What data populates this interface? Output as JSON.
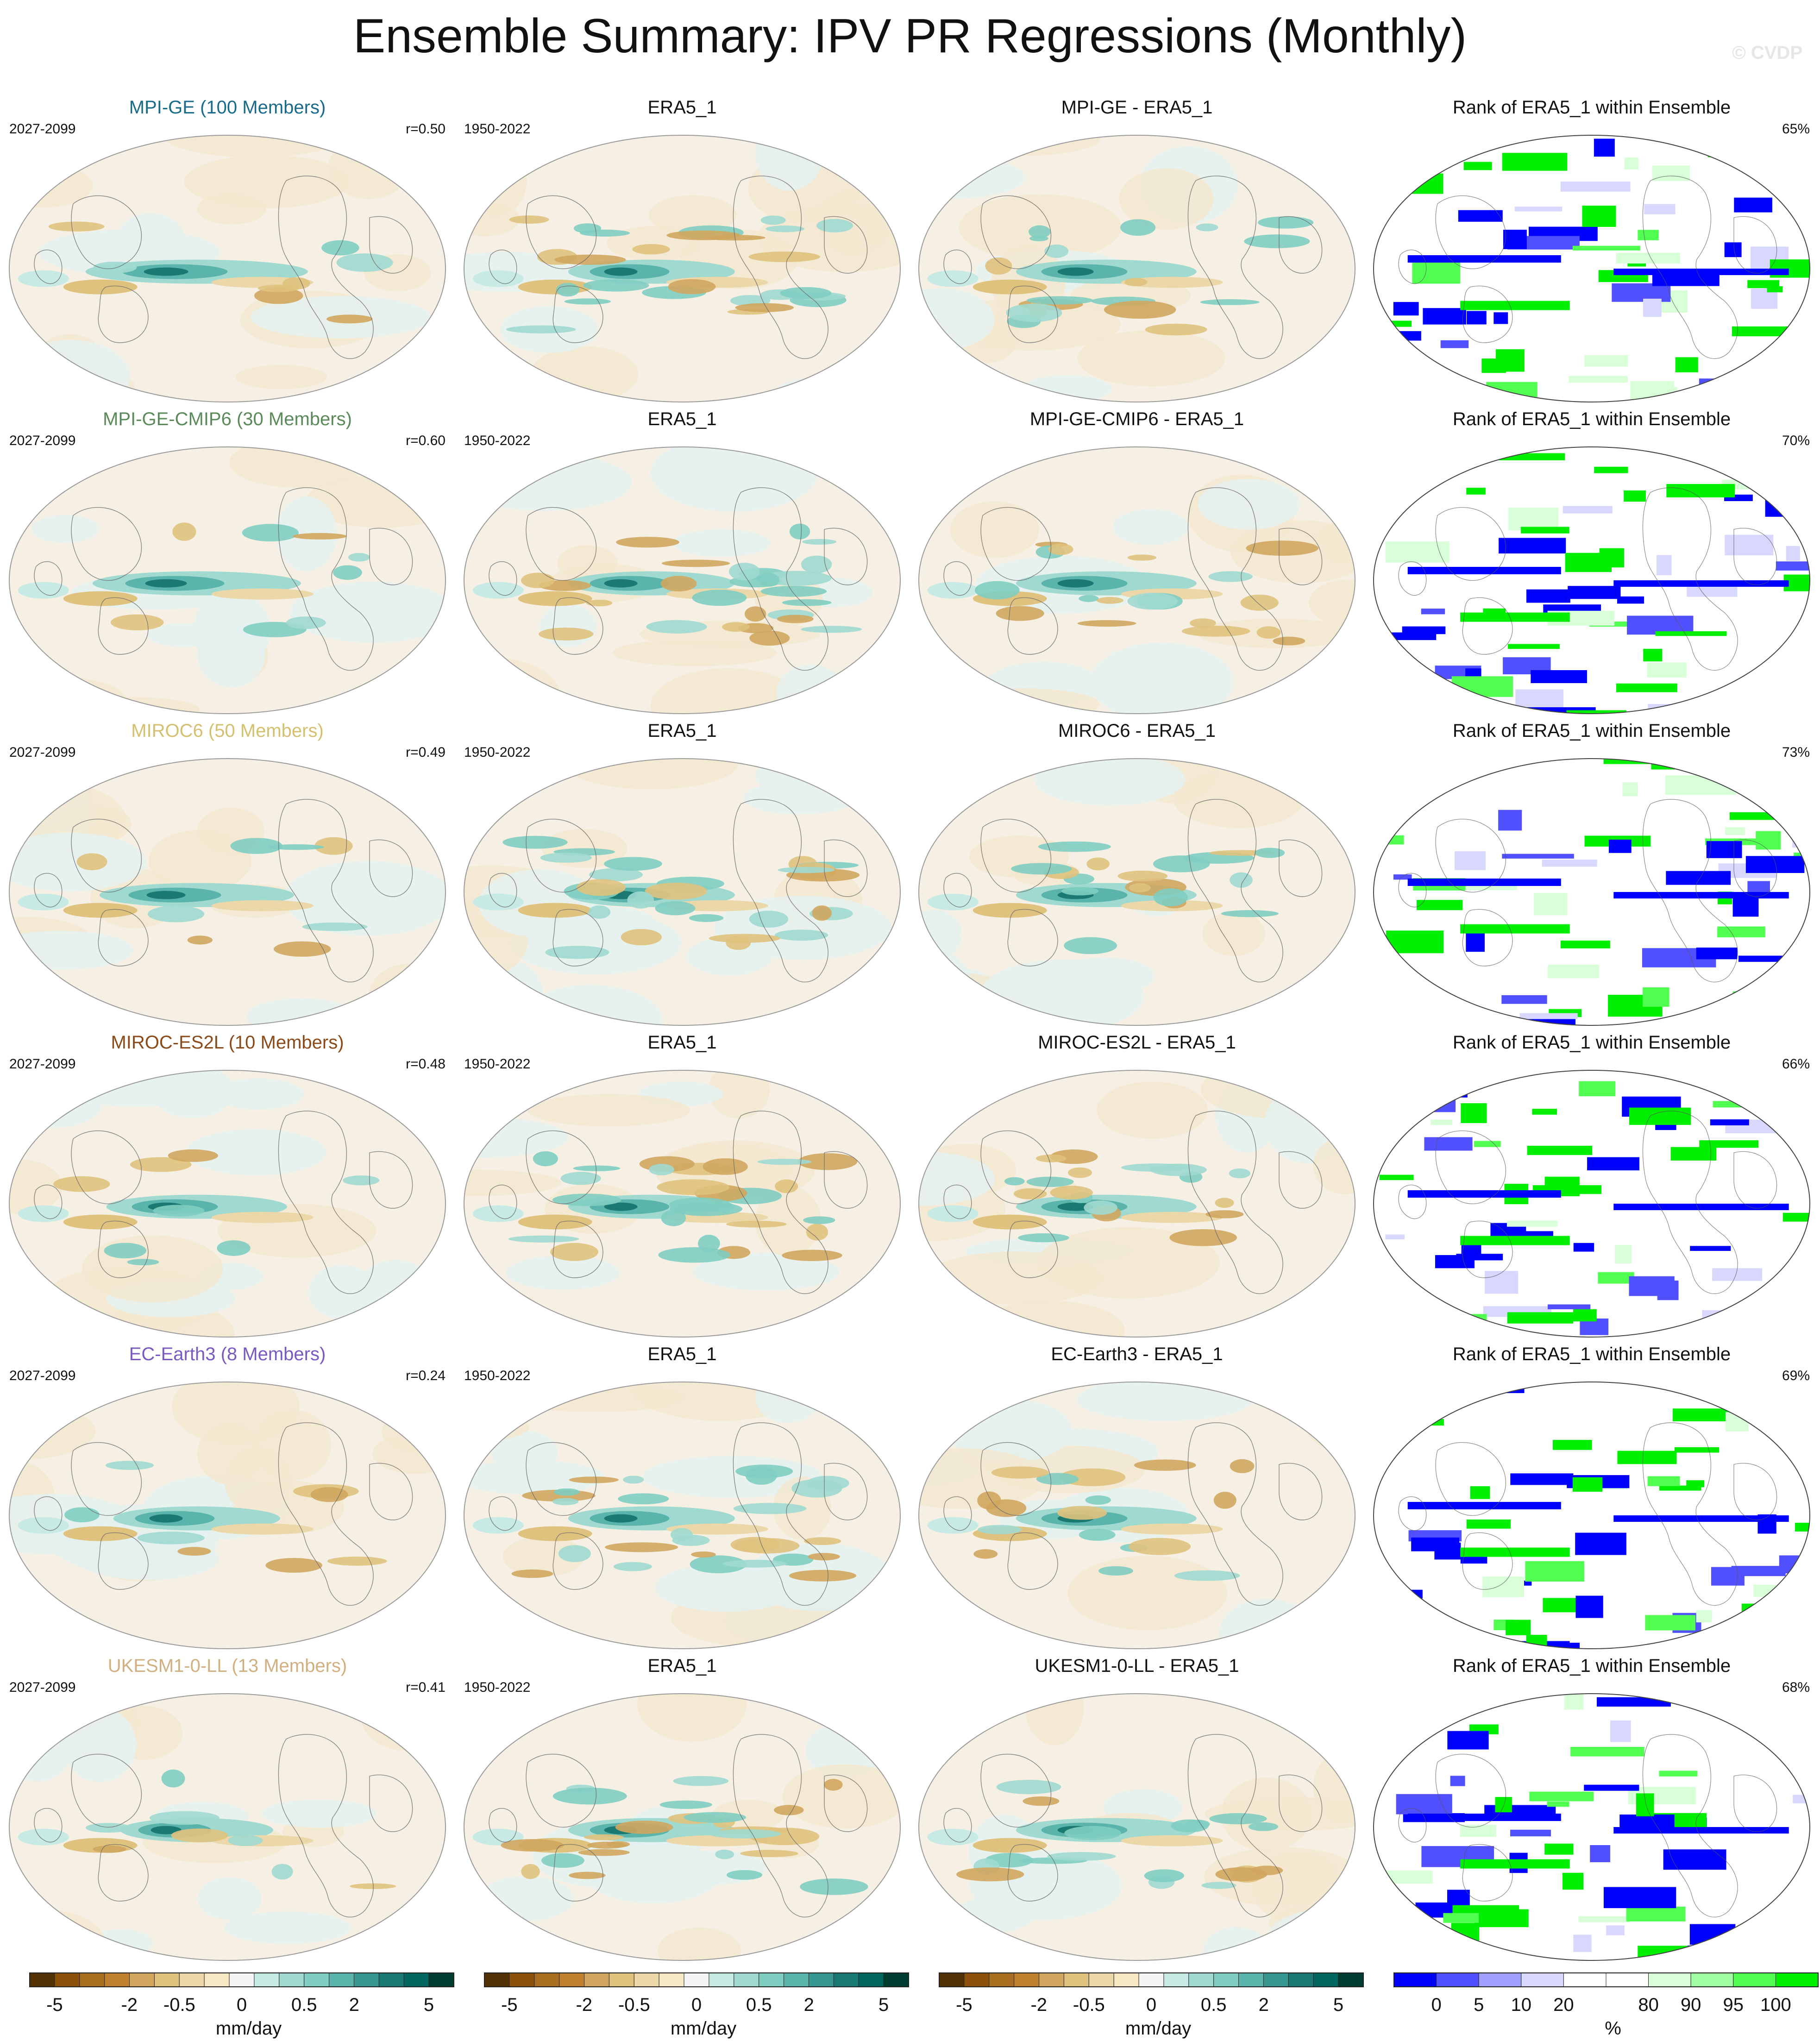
{
  "title": "Ensemble Summary: IPV PR Regressions (Monthly)",
  "watermark": "© CVDP",
  "colors": {
    "model_title": [
      "#1a6b8a",
      "#5a8a5a",
      "#d4c070",
      "#8a4a1a",
      "#7a5ac0",
      "#d0b080"
    ],
    "diverging": [
      "#543005",
      "#8c510a",
      "#a86d1f",
      "#bf812d",
      "#d0a65e",
      "#dfc27d",
      "#ebd7a8",
      "#f6e8c3",
      "#f5f5f5",
      "#c7eae5",
      "#a0d9d0",
      "#80cdc1",
      "#5ab4ac",
      "#35978f",
      "#1a7a72",
      "#01665e",
      "#003c30"
    ],
    "rank": [
      "#0000ff",
      "#5050ff",
      "#a0a0ff",
      "#d8d8ff",
      "#ffffff",
      "#ffffff",
      "#d8ffd8",
      "#a0ffa0",
      "#50ff50",
      "#00ee00"
    ]
  },
  "rows": [
    {
      "model_title": "MPI-GE (100 Members)",
      "model_period": "2027-2099",
      "r": "r=0.50",
      "obs_title": "ERA5_1",
      "obs_period": "1950-2022",
      "diff_title": "MPI-GE - ERA5_1",
      "rank_title": "Rank of ERA5_1 within Ensemble",
      "rank_pct": "65%"
    },
    {
      "model_title": "MPI-GE-CMIP6 (30 Members)",
      "model_period": "2027-2099",
      "r": "r=0.60",
      "obs_title": "ERA5_1",
      "obs_period": "1950-2022",
      "diff_title": "MPI-GE-CMIP6 - ERA5_1",
      "rank_title": "Rank of ERA5_1 within Ensemble",
      "rank_pct": "70%"
    },
    {
      "model_title": "MIROC6 (50 Members)",
      "model_period": "2027-2099",
      "r": "r=0.49",
      "obs_title": "ERA5_1",
      "obs_period": "1950-2022",
      "diff_title": "MIROC6 - ERA5_1",
      "rank_title": "Rank of ERA5_1 within Ensemble",
      "rank_pct": "73%"
    },
    {
      "model_title": "MIROC-ES2L (10 Members)",
      "model_period": "2027-2099",
      "r": "r=0.48",
      "obs_title": "ERA5_1",
      "obs_period": "1950-2022",
      "diff_title": "MIROC-ES2L - ERA5_1",
      "rank_title": "Rank of ERA5_1 within Ensemble",
      "rank_pct": "66%"
    },
    {
      "model_title": "EC-Earth3 (8 Members)",
      "model_period": "2027-2099",
      "r": "r=0.24",
      "obs_title": "ERA5_1",
      "obs_period": "1950-2022",
      "diff_title": "EC-Earth3 - ERA5_1",
      "rank_title": "Rank of ERA5_1 within Ensemble",
      "rank_pct": "69%"
    },
    {
      "model_title": "UKESM1-0-LL (13 Members)",
      "model_period": "2027-2099",
      "r": "r=0.41",
      "obs_title": "ERA5_1",
      "obs_period": "1950-2022",
      "diff_title": "UKESM1-0-LL - ERA5_1",
      "rank_title": "Rank of ERA5_1 within Ensemble",
      "rank_pct": "68%"
    }
  ],
  "colorbars": {
    "diverging_ticks": [
      "-5",
      "-2",
      "-0.5",
      "0",
      "0.5",
      "2",
      "5"
    ],
    "diverging_units": "mm/day",
    "rank_ticks": [
      "0",
      "5",
      "10",
      "20",
      "80",
      "90",
      "95",
      "100"
    ],
    "rank_units": "%"
  },
  "chart_data": {
    "type": "heatmap",
    "title": "Ensemble Summary: IPV PR Regressions (Monthly)",
    "columns": [
      "model regression",
      "observed regression (ERA5_1)",
      "model minus observed",
      "rank of ERA5_1 within ensemble"
    ],
    "pattern_correlation": [
      {
        "model": "MPI-GE",
        "members": 100,
        "r": 0.5,
        "rank_pct": 65
      },
      {
        "model": "MPI-GE-CMIP6",
        "members": 30,
        "r": 0.6,
        "rank_pct": 70
      },
      {
        "model": "MIROC6",
        "members": 50,
        "r": 0.49,
        "rank_pct": 73
      },
      {
        "model": "MIROC-ES2L",
        "members": 10,
        "r": 0.48,
        "rank_pct": 66
      },
      {
        "model": "EC-Earth3",
        "members": 8,
        "r": 0.24,
        "rank_pct": 69
      },
      {
        "model": "UKESM1-0-LL",
        "members": 13,
        "r": 0.41,
        "rank_pct": 68
      }
    ],
    "diverging_levels": [
      -5,
      -4,
      -3,
      -2,
      -1,
      -0.5,
      -0.2,
      0,
      0.2,
      0.5,
      1,
      2,
      3,
      4,
      5
    ],
    "rank_levels": [
      0,
      5,
      10,
      20,
      80,
      90,
      95,
      100
    ],
    "units": {
      "pr": "mm/day",
      "rank": "%"
    }
  }
}
